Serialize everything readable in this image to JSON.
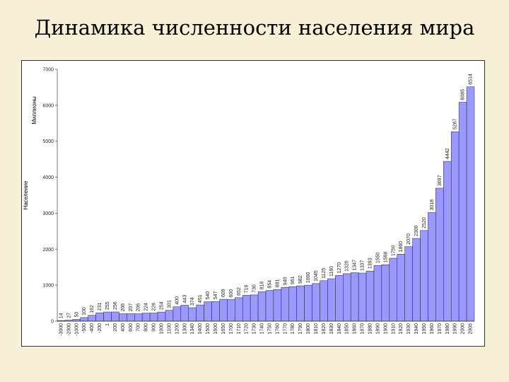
{
  "title": "Динамика численности населения мира",
  "chart_data": {
    "type": "area",
    "ylabel": "Население",
    "yunit": "Миллионы",
    "ylim": [
      0,
      7000
    ],
    "yticks": [
      0,
      1000,
      2000,
      3000,
      4000,
      5000,
      6000,
      7000
    ],
    "ytick_labels": [
      "0",
      "1000",
      "2000",
      "3000",
      "4000",
      "5000",
      "6000",
      "7000"
    ],
    "categories": [
      "-3000",
      "-2000",
      "-1000",
      "-500",
      "-400",
      "-200",
      "1",
      "200",
      "400",
      "600",
      "700",
      "800",
      "900",
      "1000",
      "1100",
      "1200",
      "1300",
      "1340",
      "1400",
      "1500",
      "1600",
      "1650",
      "1700",
      "1710",
      "1720",
      "1730",
      "1740",
      "1750",
      "1760",
      "1770",
      "1780",
      "1790",
      "1800",
      "1810",
      "1820",
      "1830",
      "1840",
      "1850",
      "1860",
      "1870",
      "1880",
      "1890",
      "1900",
      "1910",
      "1920",
      "1930",
      "1940",
      "1950",
      "1960",
      "1970",
      "1980",
      "1990",
      "2000",
      "2005"
    ],
    "values": [
      14,
      27,
      50,
      100,
      162,
      231,
      255,
      256,
      206,
      207,
      206,
      224,
      226,
      254,
      301,
      400,
      443,
      374,
      451,
      540,
      547,
      609,
      600,
      652,
      719,
      730,
      818,
      854,
      881,
      940,
      961,
      982,
      1000,
      1045,
      1125,
      1180,
      1270,
      1320,
      1347,
      1337,
      1393,
      1550,
      1568,
      1750,
      1860,
      2070,
      2300,
      2520,
      3018,
      3697,
      4442,
      5267,
      6085,
      6514
    ],
    "value_labels": [
      "14",
      "27",
      "50",
      "100",
      "162",
      "231",
      "255",
      "256",
      "206",
      "207",
      "206",
      "224",
      "226",
      "254",
      "301",
      "400",
      "443",
      "374",
      "451",
      "540",
      "547",
      "609",
      "600",
      "652",
      "719",
      "730",
      "818",
      "854",
      "881",
      "940",
      "961",
      "982",
      "1000",
      "1045",
      "1125",
      "1180",
      "1270",
      "1320",
      "1347",
      "1337",
      "1393",
      "1550",
      "1568",
      "1750",
      "1860",
      "2070",
      "2300",
      "2520",
      "3018",
      "3697",
      "4442",
      "5267",
      "6085",
      "6514"
    ],
    "grid": false,
    "colors": {
      "fill": "#9999ff",
      "stroke": "#222222",
      "frame": "#333333"
    }
  }
}
